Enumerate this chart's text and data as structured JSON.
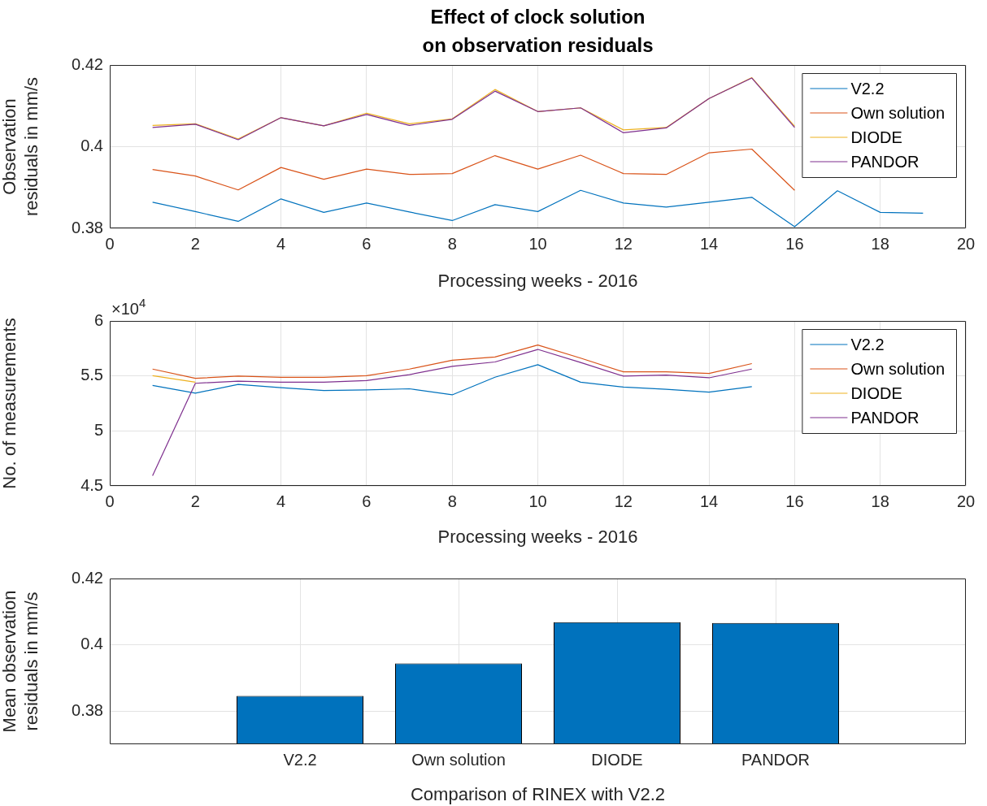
{
  "chart_data": [
    {
      "type": "line",
      "title": "Effect of clock solution\non observation residuals",
      "xlabel": "Processing weeks - 2016",
      "ylabel": "Observation\nresiduals in mm/s",
      "x": [
        1,
        2,
        3,
        4,
        5,
        6,
        7,
        8,
        9,
        10,
        11,
        12,
        13,
        14,
        15,
        16,
        17,
        18,
        19
      ],
      "series": [
        {
          "name": "V2.2",
          "color": "#0072bd",
          "values": [
            0.3864,
            0.3841,
            0.3817,
            0.3872,
            0.3839,
            0.3862,
            0.384,
            0.3819,
            0.3858,
            0.3841,
            0.3893,
            0.3862,
            0.3852,
            0.3864,
            0.3876,
            0.3804,
            0.3892,
            0.3839,
            0.3837
          ]
        },
        {
          "name": "Own solution",
          "color": "#d95319",
          "values": [
            0.3944,
            0.3928,
            0.3894,
            0.3949,
            0.392,
            0.3945,
            0.3932,
            0.3934,
            0.3978,
            0.3945,
            0.3979,
            0.3934,
            0.3932,
            0.3985,
            0.3994,
            0.3893,
            null,
            null,
            null
          ]
        },
        {
          "name": "DIODE",
          "color": "#edb120",
          "values": [
            0.4052,
            0.4056,
            0.4019,
            0.4071,
            0.4051,
            0.4082,
            0.4056,
            0.4068,
            0.414,
            0.4086,
            0.4095,
            0.4041,
            0.4047,
            0.4118,
            0.4169,
            0.405,
            null,
            null,
            null
          ]
        },
        {
          "name": "PANDOR",
          "color": "#7e2f8e",
          "values": [
            0.4047,
            0.4055,
            0.4017,
            0.4071,
            0.4051,
            0.4079,
            0.4052,
            0.4067,
            0.4136,
            0.4086,
            0.4095,
            0.4034,
            0.4046,
            0.4118,
            0.4168,
            0.4047,
            null,
            null,
            null
          ]
        }
      ],
      "xlim": [
        0,
        20
      ],
      "xticks": [
        0,
        2,
        4,
        6,
        8,
        10,
        12,
        14,
        16,
        18,
        20
      ],
      "ylim": [
        0.38,
        0.42
      ],
      "yticks": [
        0.38,
        0.4,
        0.42
      ],
      "grid": true,
      "legend": "top right",
      "marker": "none",
      "line_style": "solid"
    },
    {
      "type": "line",
      "xlabel": "Processing weeks - 2016",
      "ylabel": "No. of measurements",
      "annotations": [
        "×10$^{4}$"
      ],
      "x": [
        1,
        2,
        3,
        4,
        5,
        6,
        7,
        8,
        9,
        10,
        11,
        12,
        13,
        14,
        15
      ],
      "series": [
        {
          "name": "V2.2",
          "color": "#0072bd",
          "values": [
            5.413,
            5.343,
            5.423,
            5.393,
            5.368,
            5.373,
            5.383,
            5.328,
            5.488,
            5.602,
            5.443,
            5.398,
            5.378,
            5.353,
            5.403
          ]
        },
        {
          "name": "Own solution",
          "color": "#d95319",
          "values": [
            5.562,
            5.478,
            5.498,
            5.488,
            5.488,
            5.502,
            5.562,
            5.642,
            5.672,
            5.781,
            5.662,
            5.537,
            5.537,
            5.522,
            5.612
          ]
        },
        {
          "name": "DIODE",
          "color": "#edb120",
          "values": [
            5.502,
            5.443,
            null,
            null,
            null,
            null,
            null,
            null,
            null,
            null,
            null,
            null,
            null,
            null,
            null
          ]
        },
        {
          "name": "PANDOR",
          "color": "#7e2f8e",
          "values": [
            4.592,
            5.433,
            5.453,
            5.443,
            5.443,
            5.458,
            5.512,
            5.587,
            5.627,
            5.741,
            5.622,
            5.498,
            5.507,
            5.483,
            5.562
          ]
        }
      ],
      "xlim": [
        0,
        20
      ],
      "xticks": [
        0,
        2,
        4,
        6,
        8,
        10,
        12,
        14,
        16,
        18,
        20
      ],
      "ylim": [
        4.5,
        6
      ],
      "yticks": [
        4.5,
        5,
        5.5,
        6
      ],
      "grid": true,
      "legend": "top right",
      "marker": "none",
      "line_style": "solid"
    },
    {
      "type": "bar",
      "xlabel": "Comparison of RINEX with V2.2",
      "ylabel": "Mean observation\nresiduals in mm/s",
      "categories": [
        null,
        "V2.2",
        "Own solution",
        "DIODE",
        "PANDOR",
        null
      ],
      "values": [
        null,
        0.3846,
        0.3944,
        0.4068,
        0.4066,
        null
      ],
      "color": "#0072bd",
      "ylim": [
        0.37,
        0.42
      ],
      "yticks": [
        0.38,
        0.4,
        0.42
      ],
      "grid": true
    }
  ]
}
